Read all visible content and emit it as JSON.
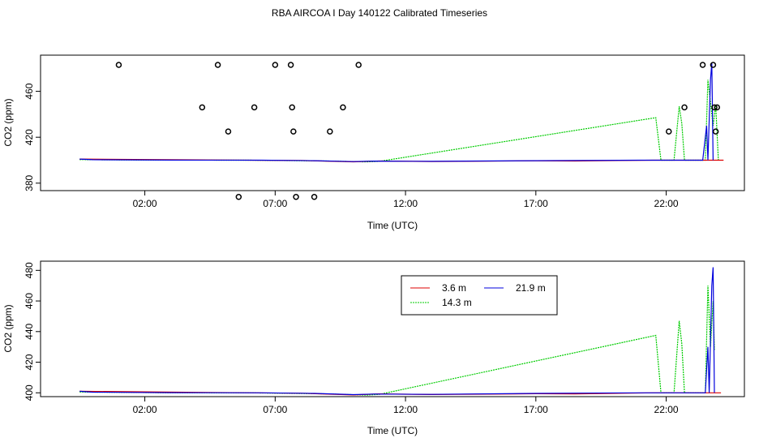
{
  "title": "RBA AIRCOA I  Day 140122  Calibrated Timeseries",
  "colors": {
    "m3_6": "#dd0000",
    "m14_3": "#00cc00",
    "m21_9": "#0000dd",
    "flag": "#000000"
  },
  "chart_data": [
    {
      "type": "line",
      "panel": "top",
      "xlabel": "Time (UTC)",
      "ylabel": "CO2 (ppm)",
      "x_units": "hours",
      "xlim": [
        -2.0,
        25.0
      ],
      "ylim": [
        373.5,
        491.5
      ],
      "xticks": [
        2,
        7,
        12,
        17,
        22
      ],
      "xtick_labels": [
        "02:00",
        "07:00",
        "12:00",
        "17:00",
        "22:00"
      ],
      "yticks": [
        380,
        420,
        460
      ],
      "ytick_labels": [
        "380",
        "420",
        "460"
      ],
      "series": [
        {
          "name": "14.3 m",
          "key": "m14_3",
          "points": [
            [
              -0.5,
              400.5
            ],
            [
              2.5,
              400.1
            ],
            [
              6.0,
              400.0
            ],
            [
              9.0,
              399.3
            ],
            [
              10.5,
              398.5
            ],
            [
              11.0,
              399.0
            ],
            [
              21.6,
              437.0
            ],
            [
              21.8,
              400.0
            ],
            [
              22.3,
              400.0
            ],
            [
              22.5,
              447.0
            ],
            [
              22.6,
              432.0
            ],
            [
              22.7,
              400.0
            ],
            [
              23.5,
              400.0
            ],
            [
              23.6,
              470.0
            ],
            [
              23.8,
              430.0
            ],
            [
              23.9,
              448.0
            ],
            [
              24.0,
              400.0
            ]
          ]
        },
        {
          "name": "3.6 m",
          "key": "m3_6",
          "points": [
            [
              -0.5,
              401.0
            ],
            [
              4.0,
              400.3
            ],
            [
              8.0,
              399.7
            ],
            [
              10.0,
              398.6
            ],
            [
              11.0,
              399.3
            ],
            [
              13.0,
              398.9
            ],
            [
              17.0,
              399.4
            ],
            [
              18.5,
              399.3
            ],
            [
              21.5,
              400.0
            ],
            [
              23.9,
              400.0
            ],
            [
              24.2,
              400.0
            ]
          ]
        },
        {
          "name": "21.9 m",
          "key": "m21_9",
          "points": [
            [
              -0.5,
              401.0
            ],
            [
              0.0,
              400.4
            ],
            [
              3.0,
              400.1
            ],
            [
              6.5,
              400.0
            ],
            [
              8.5,
              399.6
            ],
            [
              10.0,
              398.8
            ],
            [
              10.8,
              399.2
            ],
            [
              13.0,
              399.0
            ],
            [
              17.0,
              399.6
            ],
            [
              21.0,
              400.0
            ],
            [
              23.4,
              400.0
            ],
            [
              23.55,
              430.0
            ],
            [
              23.6,
              400.0
            ],
            [
              23.7,
              470.0
            ],
            [
              23.75,
              485.0
            ],
            [
              23.8,
              400.0
            ]
          ]
        }
      ],
      "flagged_points": [
        [
          1.0,
          483
        ],
        [
          4.2,
          446
        ],
        [
          4.8,
          483
        ],
        [
          5.2,
          425
        ],
        [
          5.6,
          368
        ],
        [
          6.2,
          446
        ],
        [
          7.0,
          483
        ],
        [
          7.6,
          483
        ],
        [
          7.65,
          446
        ],
        [
          7.7,
          425
        ],
        [
          7.8,
          368
        ],
        [
          8.5,
          368
        ],
        [
          9.1,
          425
        ],
        [
          9.6,
          446
        ],
        [
          10.2,
          483
        ],
        [
          22.1,
          425
        ],
        [
          22.7,
          446
        ],
        [
          23.4,
          483
        ],
        [
          23.8,
          483
        ],
        [
          23.85,
          446
        ],
        [
          23.9,
          425
        ],
        [
          23.95,
          446
        ]
      ]
    },
    {
      "type": "line",
      "panel": "bottom",
      "xlabel": "Time (UTC)",
      "ylabel": "CO2 (ppm)",
      "x_units": "hours",
      "xlim": [
        -2.0,
        25.0
      ],
      "ylim": [
        397.5,
        486.0
      ],
      "xticks": [
        2,
        7,
        12,
        17,
        22
      ],
      "xtick_labels": [
        "02:00",
        "07:00",
        "12:00",
        "17:00",
        "22:00"
      ],
      "yticks": [
        400,
        420,
        440,
        460,
        480
      ],
      "ytick_labels": [
        "400",
        "420",
        "440",
        "460",
        "480"
      ],
      "legend": {
        "placement": "top-center",
        "entries": [
          {
            "label": "3.6 m",
            "key": "m3_6"
          },
          {
            "label": "21.9 m",
            "key": "m21_9"
          },
          {
            "label": "14.3 m",
            "key": "m14_3"
          }
        ]
      },
      "series": [
        {
          "name": "14.3 m",
          "key": "m14_3",
          "points": [
            [
              -0.5,
              400.5
            ],
            [
              2.5,
              400.1
            ],
            [
              6.0,
              400.0
            ],
            [
              9.0,
              399.3
            ],
            [
              10.5,
              398.5
            ],
            [
              11.0,
              399.0
            ],
            [
              21.6,
              437.5
            ],
            [
              21.8,
              400.0
            ],
            [
              22.3,
              400.0
            ],
            [
              22.5,
              447.0
            ],
            [
              22.6,
              432.0
            ],
            [
              22.7,
              400.0
            ],
            [
              23.5,
              400.0
            ],
            [
              23.6,
              470.0
            ],
            [
              23.7,
              430.0
            ],
            [
              23.8,
              460.0
            ],
            [
              23.85,
              428.0
            ]
          ]
        },
        {
          "name": "3.6 m",
          "key": "m3_6",
          "points": [
            [
              -0.5,
              401.0
            ],
            [
              4.0,
              400.3
            ],
            [
              8.0,
              399.7
            ],
            [
              10.0,
              398.6
            ],
            [
              11.0,
              399.3
            ],
            [
              13.0,
              398.9
            ],
            [
              17.0,
              399.4
            ],
            [
              18.5,
              399.3
            ],
            [
              21.5,
              400.0
            ],
            [
              23.9,
              400.0
            ],
            [
              24.1,
              400.0
            ]
          ]
        },
        {
          "name": "21.9 m",
          "key": "m21_9",
          "points": [
            [
              -0.5,
              401.0
            ],
            [
              0.0,
              400.4
            ],
            [
              3.0,
              400.1
            ],
            [
              6.5,
              400.0
            ],
            [
              8.5,
              399.6
            ],
            [
              10.0,
              398.8
            ],
            [
              10.8,
              399.2
            ],
            [
              13.0,
              399.0
            ],
            [
              17.0,
              399.6
            ],
            [
              21.0,
              400.0
            ],
            [
              23.5,
              400.0
            ],
            [
              23.6,
              430.0
            ],
            [
              23.65,
              400.0
            ],
            [
              23.75,
              470.0
            ],
            [
              23.8,
              482.0
            ],
            [
              23.85,
              400.0
            ]
          ]
        }
      ]
    }
  ]
}
